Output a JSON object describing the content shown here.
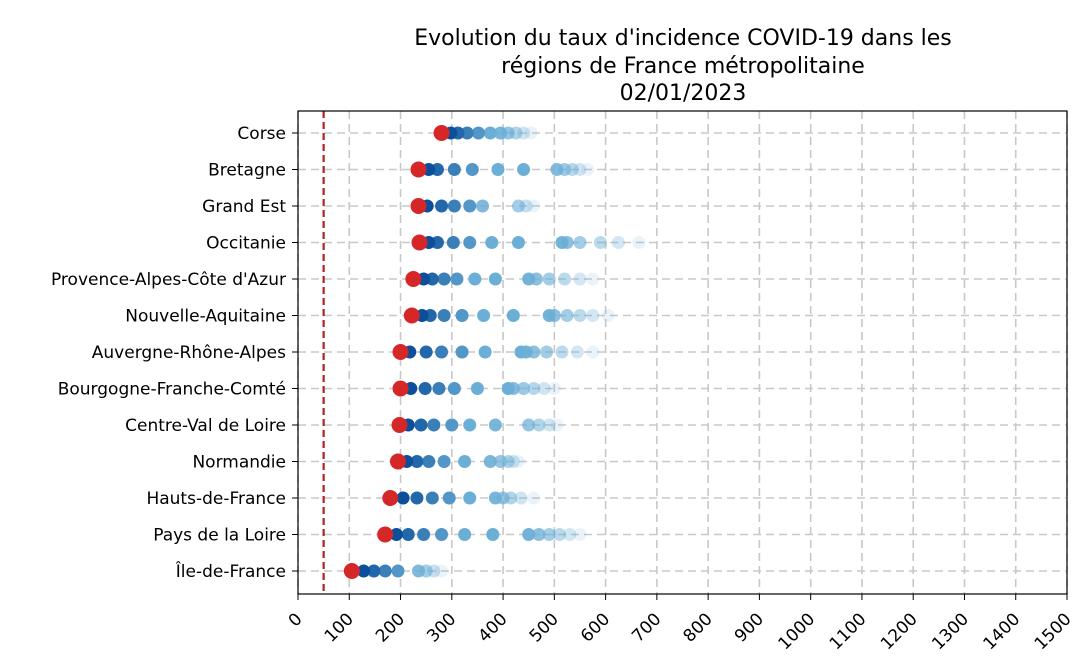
{
  "chart_data": {
    "type": "scatter",
    "title_lines": [
      "Evolution du taux d'incidence COVID-19 dans les",
      "régions de France métropolitaine",
      "02/01/2023"
    ],
    "xlim": [
      0,
      1500
    ],
    "x_ticks": [
      0,
      100,
      200,
      300,
      400,
      500,
      600,
      700,
      800,
      900,
      1000,
      1100,
      1200,
      1300,
      1400,
      1500
    ],
    "grid": true,
    "reference_line": {
      "x": 50,
      "color": "#b22222"
    },
    "colors": {
      "latest": "#d62728",
      "recent": "#0b4f9c",
      "older": "#6baed6"
    },
    "categories": [
      "Corse",
      "Bretagne",
      "Grand Est",
      "Occitanie",
      "Provence-Alpes-Côte d'Azur",
      "Nouvelle-Aquitaine",
      "Auvergne-Rhône-Alpes",
      "Bourgogne-Franche-Comté",
      "Centre-Val de Loire",
      "Normandie",
      "Hauts-de-France",
      "Pays de la Loire",
      "Île-de-France"
    ],
    "series": [
      {
        "category": "Corse",
        "values": [
          280,
          298,
          312,
          330,
          352,
          375,
          395,
          410,
          425,
          440,
          455
        ]
      },
      {
        "category": "Bretagne",
        "values": [
          235,
          255,
          272,
          305,
          340,
          390,
          440,
          505,
          520,
          535,
          550,
          565
        ]
      },
      {
        "category": "Grand Est",
        "values": [
          235,
          252,
          280,
          305,
          335,
          360,
          430,
          445,
          460
        ]
      },
      {
        "category": "Occitanie",
        "values": [
          237,
          255,
          272,
          303,
          335,
          378,
          430,
          515,
          525,
          550,
          590,
          625,
          665
        ]
      },
      {
        "category": "Provence-Alpes-Côte d'Azur",
        "values": [
          225,
          245,
          262,
          285,
          310,
          345,
          385,
          450,
          465,
          490,
          520,
          550,
          575
        ]
      },
      {
        "category": "Nouvelle-Aquitaine",
        "values": [
          222,
          242,
          258,
          285,
          320,
          362,
          420,
          490,
          500,
          525,
          550,
          575,
          605
        ]
      },
      {
        "category": "Auvergne-Rhône-Alpes",
        "values": [
          200,
          218,
          250,
          280,
          320,
          365,
          435,
          445,
          460,
          485,
          515,
          545,
          575
        ]
      },
      {
        "category": "Bourgogne-Franche-Comté",
        "values": [
          200,
          220,
          248,
          275,
          305,
          350,
          410,
          420,
          440,
          460,
          480,
          500
        ]
      },
      {
        "category": "Centre-Val de Loire",
        "values": [
          198,
          215,
          240,
          265,
          300,
          335,
          385,
          450,
          470,
          490,
          505
        ]
      },
      {
        "category": "Normandie",
        "values": [
          195,
          212,
          232,
          255,
          285,
          325,
          375,
          395,
          410,
          420,
          430
        ]
      },
      {
        "category": "Hauts-de-France",
        "values": [
          180,
          205,
          232,
          262,
          295,
          335,
          385,
          400,
          415,
          435,
          460
        ]
      },
      {
        "category": "Pays de la Loire",
        "values": [
          170,
          192,
          215,
          245,
          280,
          325,
          380,
          450,
          470,
          490,
          510,
          530,
          550
        ]
      },
      {
        "category": "Île-de-France",
        "values": [
          105,
          128,
          148,
          170,
          195,
          235,
          250,
          265,
          280
        ]
      }
    ]
  }
}
